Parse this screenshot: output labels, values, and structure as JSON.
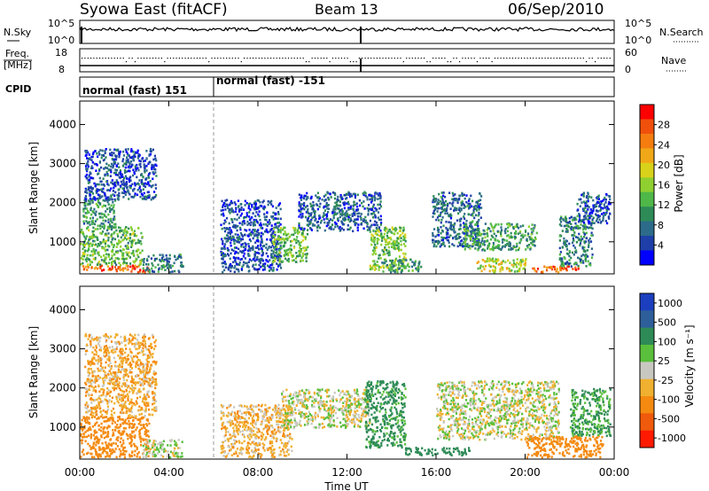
{
  "header": {
    "station": "Syowa East (fitACF)",
    "beam": "Beam 13",
    "date": "06/Sep/2010"
  },
  "sky_panel": {
    "left_label": "N.Sky",
    "right_label": "N.Search",
    "ticks_left": [
      "10^5",
      "10^0"
    ],
    "ticks_right": [
      "10^5",
      "10^0"
    ]
  },
  "freq_panel": {
    "left_label_1": "Freq.",
    "left_label_2": "[MHz]",
    "right_label": "Nave",
    "ticks_left": [
      "18",
      "8"
    ],
    "ticks_right": [
      "60",
      "0"
    ]
  },
  "cpid": {
    "label": "CPID",
    "modes": [
      {
        "name": "normal (fast) 151",
        "start_hour": 0,
        "end_hour": 6
      },
      {
        "name": "normal (fast) -151",
        "start_hour": 6,
        "end_hour": 24
      }
    ]
  },
  "chart_data": [
    {
      "type": "heatmap",
      "name": "power",
      "ylabel": "Slant Range [km]",
      "yticks": [
        "1000",
        "2000",
        "3000",
        "4000"
      ],
      "ylim": [
        180,
        4600
      ],
      "xlim_hours": [
        0,
        24
      ],
      "colorbar": {
        "label": "Power [dB]",
        "ticks": [
          "4",
          "8",
          "12",
          "16",
          "20",
          "24",
          "28"
        ],
        "range": [
          0,
          32
        ],
        "colors": [
          "#0000ff",
          "#1e3fa8",
          "#2d6b8a",
          "#2e8b57",
          "#4fb848",
          "#8fd030",
          "#d9d21a",
          "#f0a818",
          "#f57d10",
          "#f0500c",
          "#ff0000"
        ]
      },
      "echo_regions": [
        {
          "t0": 0.0,
          "t1": 3.1,
          "r0": 250,
          "r1": 420,
          "level": 26
        },
        {
          "t0": 0.0,
          "t1": 2.8,
          "r0": 420,
          "r1": 1400,
          "level": 13
        },
        {
          "t0": 0.1,
          "t1": 1.6,
          "r0": 1400,
          "r1": 2100,
          "level": 10
        },
        {
          "t0": 0.2,
          "t1": 3.4,
          "r0": 2100,
          "r1": 3400,
          "level": 5
        },
        {
          "t0": 2.8,
          "t1": 4.6,
          "r0": 250,
          "r1": 700,
          "level": 9
        },
        {
          "t0": 6.3,
          "t1": 9.0,
          "r0": 250,
          "r1": 2100,
          "level": 5
        },
        {
          "t0": 8.6,
          "t1": 10.2,
          "r0": 500,
          "r1": 1400,
          "level": 14
        },
        {
          "t0": 9.8,
          "t1": 13.5,
          "r0": 1300,
          "r1": 2300,
          "level": 6
        },
        {
          "t0": 13.0,
          "t1": 14.6,
          "r0": 300,
          "r1": 1400,
          "level": 15
        },
        {
          "t0": 13.5,
          "t1": 15.3,
          "r0": 250,
          "r1": 600,
          "level": 11
        },
        {
          "t0": 15.8,
          "t1": 18.0,
          "r0": 900,
          "r1": 2300,
          "level": 7
        },
        {
          "t0": 17.2,
          "t1": 20.5,
          "r0": 800,
          "r1": 1500,
          "level": 11
        },
        {
          "t0": 17.8,
          "t1": 20.0,
          "r0": 250,
          "r1": 600,
          "level": 18
        },
        {
          "t0": 20.3,
          "t1": 22.4,
          "r0": 250,
          "r1": 420,
          "level": 27
        },
        {
          "t0": 21.5,
          "t1": 23.0,
          "r0": 400,
          "r1": 1700,
          "level": 9
        },
        {
          "t0": 22.3,
          "t1": 23.8,
          "r0": 1500,
          "r1": 2300,
          "level": 5
        }
      ]
    },
    {
      "type": "heatmap",
      "name": "velocity",
      "ylabel": "Slant Range [km]",
      "yticks": [
        "1000",
        "2000",
        "3000",
        "4000"
      ],
      "ylim": [
        180,
        4600
      ],
      "xlim_hours": [
        0,
        24
      ],
      "xticks": [
        "00:00",
        "04:00",
        "08:00",
        "12:00",
        "16:00",
        "20:00",
        "00:00"
      ],
      "xlabel": "Time UT",
      "colorbar": {
        "label": "Velocity [m s⁻¹]",
        "ticks": [
          "1000",
          "500",
          "100",
          "25",
          "-25",
          "-100",
          "-500",
          "-1000"
        ],
        "colors": [
          "#1c3fbf",
          "#2e5f9a",
          "#2e8b57",
          "#5abf3c",
          "#c8c8c0",
          "#f0b030",
          "#f58a10",
          "#f05a0c",
          "#ff1a00"
        ]
      },
      "echo_regions": [
        {
          "t0": 0.0,
          "t1": 3.1,
          "r0": 250,
          "r1": 1300,
          "level": -400
        },
        {
          "t0": 0.2,
          "t1": 3.4,
          "r0": 1300,
          "r1": 3400,
          "level": -80
        },
        {
          "t0": 2.8,
          "t1": 4.6,
          "r0": 250,
          "r1": 700,
          "level": 10
        },
        {
          "t0": 6.3,
          "t1": 9.5,
          "r0": 250,
          "r1": 1600,
          "level": -60
        },
        {
          "t0": 9.0,
          "t1": 13.0,
          "r0": 1000,
          "r1": 2000,
          "level": 0
        },
        {
          "t0": 12.8,
          "t1": 14.6,
          "r0": 500,
          "r1": 2200,
          "level": 150
        },
        {
          "t0": 14.5,
          "t1": 17.5,
          "r0": 300,
          "r1": 500,
          "level": 200
        },
        {
          "t0": 16.0,
          "t1": 21.5,
          "r0": 700,
          "r1": 2200,
          "level": 0
        },
        {
          "t0": 20.0,
          "t1": 23.5,
          "r0": 250,
          "r1": 800,
          "level": -200
        },
        {
          "t0": 22.0,
          "t1": 23.8,
          "r0": 800,
          "r1": 2000,
          "level": 120
        }
      ]
    }
  ]
}
